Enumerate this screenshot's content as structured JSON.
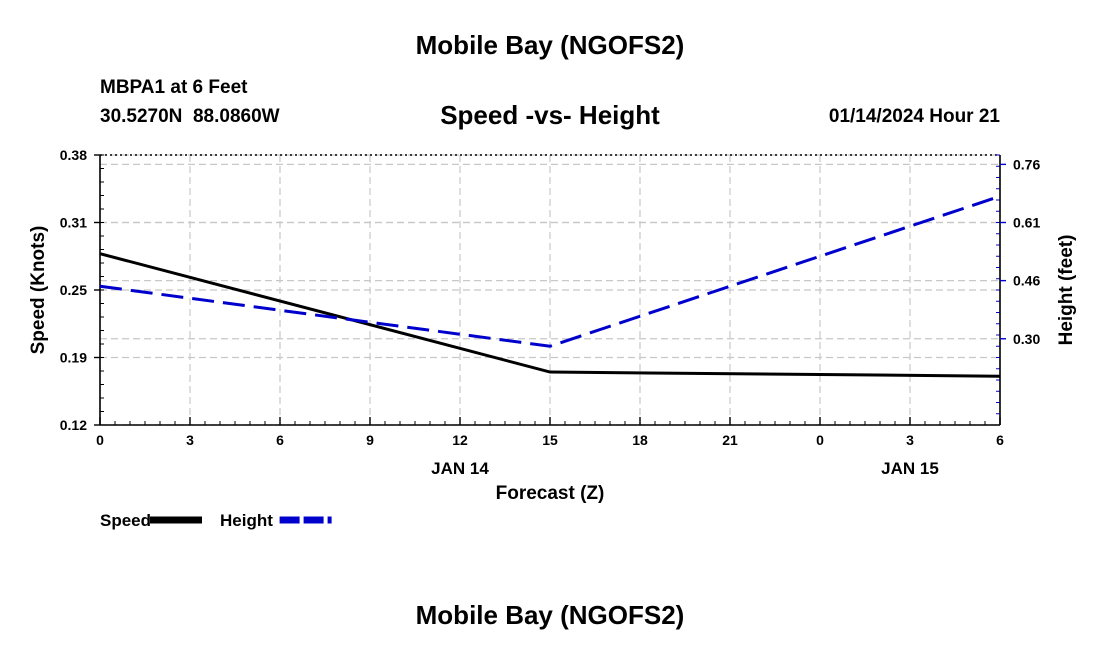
{
  "page_title": "Mobile Bay (NGOFS2)",
  "footer_title": "Mobile Bay (NGOFS2)",
  "station": {
    "name": "MBPA1 at 6 Feet",
    "coords": "30.5270N  88.0860W"
  },
  "timestamp": "01/14/2024 Hour 21",
  "chart_data": {
    "type": "line",
    "title": "Speed -vs- Height",
    "xlabel": "Forecast (Z)",
    "ylabel_left": "Speed (Knots)",
    "ylabel_right": "Height (feet)",
    "x_ticks": [
      "0",
      "3",
      "6",
      "9",
      "12",
      "15",
      "18",
      "21",
      "0",
      "3",
      "6"
    ],
    "x_tick_hours": [
      0,
      3,
      6,
      9,
      12,
      15,
      18,
      21,
      24,
      27,
      30
    ],
    "date_labels": [
      {
        "label": "JAN 14",
        "hour": 12
      },
      {
        "label": "JAN 15",
        "hour": 27
      }
    ],
    "xlim": [
      0,
      30
    ],
    "y_left_ticks": [
      "0.12",
      "0.19",
      "0.25",
      "0.31",
      "0.38"
    ],
    "y_left_values": [
      0.12,
      0.185,
      0.25,
      0.315,
      0.38
    ],
    "y_left_lim": [
      0.12,
      0.38
    ],
    "y_right_ticks": [
      "0.30",
      "0.46",
      "0.61",
      "0.76"
    ],
    "y_right_values": [
      0.3,
      0.455,
      0.61,
      0.765
    ],
    "y_right_lim": [
      0.07,
      0.79
    ],
    "grid": true,
    "series": [
      {
        "name": "Speed",
        "axis": "left",
        "color": "#000000",
        "style": "solid",
        "x": [
          0,
          15,
          30
        ],
        "values": [
          0.285,
          0.171,
          0.167
        ]
      },
      {
        "name": "Height",
        "axis": "right",
        "color": "#0000cc",
        "style": "dashed",
        "x": [
          0,
          15,
          30
        ],
        "values": [
          0.44,
          0.28,
          0.68
        ]
      }
    ],
    "legend": [
      {
        "label": "Speed",
        "color": "#000000",
        "style": "solid"
      },
      {
        "label": "Height",
        "color": "#0000cc",
        "style": "dashed"
      }
    ]
  }
}
